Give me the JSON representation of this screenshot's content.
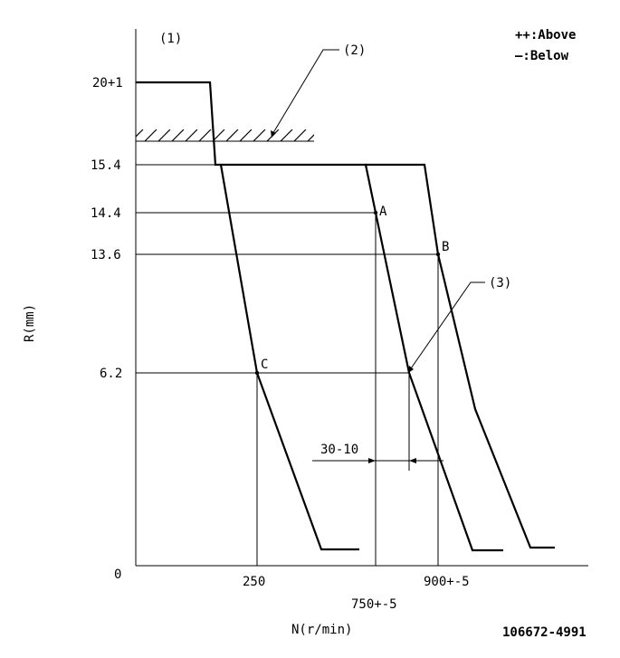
{
  "labels": {
    "callout_1": "(1)",
    "callout_2": "(2)",
    "callout_3": "(3)",
    "legend_above": "++:Above",
    "legend_below": "—:Below",
    "y_axis_label": "R(mm)",
    "x_axis_label": "N(r/min)",
    "y_tick_20": "20+1",
    "y_tick_154": "15.4",
    "y_tick_144": "14.4",
    "y_tick_136": "13.6",
    "y_tick_62": "6.2",
    "y_tick_0": "0",
    "x_tick_250": "250",
    "x_tick_750": "750+-5",
    "x_tick_900": "900+-5",
    "point_a": "A",
    "point_b": "B",
    "point_c": "C",
    "tolerance": "30-10",
    "part_number": "106672-4991"
  }
}
